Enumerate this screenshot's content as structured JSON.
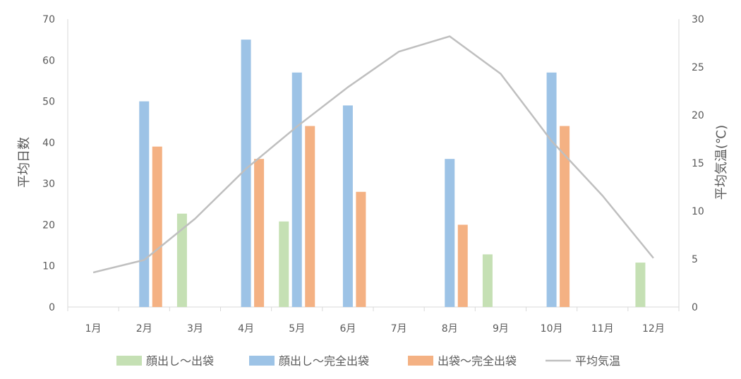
{
  "chart_data": {
    "type": "bar",
    "categories": [
      "1月",
      "2月",
      "3月",
      "4月",
      "5月",
      "6月",
      "7月",
      "8月",
      "9月",
      "10月",
      "11月",
      "12月"
    ],
    "series": [
      {
        "name": "顔出し～出袋",
        "type": "bar",
        "axis": "left",
        "color": "#c5e0b4",
        "values": [
          null,
          null,
          22.7,
          null,
          20.8,
          null,
          null,
          null,
          12.8,
          null,
          null,
          10.8
        ]
      },
      {
        "name": "顔出し～完全出袋",
        "type": "bar",
        "axis": "left",
        "color": "#9dc3e6",
        "values": [
          null,
          50,
          null,
          65,
          57,
          49,
          null,
          36,
          null,
          57,
          null,
          null
        ]
      },
      {
        "name": "出袋～完全出袋",
        "type": "bar",
        "axis": "left",
        "color": "#f4b183",
        "values": [
          null,
          39,
          null,
          36,
          44,
          28,
          null,
          20,
          null,
          44,
          null,
          null
        ]
      },
      {
        "name": "平均気温",
        "type": "line",
        "axis": "right",
        "color": "#bfbfbf",
        "values": [
          3.6,
          4.9,
          9.2,
          14.4,
          18.8,
          22.9,
          26.6,
          28.2,
          24.3,
          17.3,
          11.6,
          5.1
        ]
      }
    ],
    "ylabel": "平均日数",
    "y2label": "平均気温(℃)",
    "ylim": [
      0,
      70
    ],
    "yticks": [
      "0",
      "10",
      "20",
      "30",
      "40",
      "50",
      "60",
      "70"
    ],
    "y2lim": [
      0,
      30
    ],
    "y2ticks": [
      "0",
      "5",
      "10",
      "15",
      "20",
      "25",
      "30"
    ],
    "grid": false,
    "legend_position": "bottom"
  }
}
